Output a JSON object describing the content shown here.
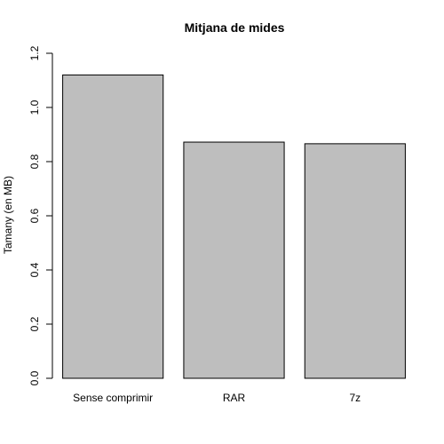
{
  "chart_data": {
    "type": "bar",
    "title": "Mitjana de mides",
    "xlabel": "",
    "ylabel": "Tamany (en MB)",
    "categories": [
      "Sense comprimir",
      "RAR",
      "7z"
    ],
    "values": [
      1.12,
      0.872,
      0.866
    ],
    "ylim": [
      0,
      1.2
    ],
    "yticks": [
      "0.0",
      "0.2",
      "0.4",
      "0.6",
      "0.8",
      "1.0",
      "1.2"
    ],
    "bar_color": "#bebebe",
    "bar_border_color": "#000000",
    "grid": false,
    "legend": "none"
  }
}
